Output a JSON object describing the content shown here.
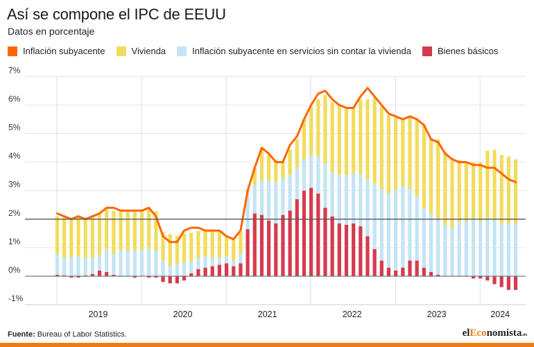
{
  "header": {
    "title": "Así se compone el IPC de EEUU",
    "subtitle": "Datos en porcentaje"
  },
  "legend": [
    {
      "label": "Inflación subyacente",
      "color": "#ff6600"
    },
    {
      "label": "Vivienda",
      "color": "#f2dc5d"
    },
    {
      "label": "Inflación subyacente en servicios sin contar la vivienda",
      "color": "#c3e4f5"
    },
    {
      "label": "Bienes básicos",
      "color": "#d63a4e"
    }
  ],
  "footer": {
    "source_label": "Fuente:",
    "source_text": " Bureau of Labor Statistics.",
    "brand_el": "el",
    "brand_eco": "Eco",
    "brand_nomista": "nomista",
    "brand_es": ".es"
  },
  "chart_data": {
    "type": "bar",
    "subtype": "stacked bar with line overlay",
    "title": "Así se compone el IPC de EEUU",
    "subtitle": "Datos en porcentaje",
    "xlabel": "",
    "ylabel": "",
    "ylim": [
      -1,
      7
    ],
    "yticks": [
      -1,
      0,
      1,
      2,
      3,
      4,
      5,
      6,
      7
    ],
    "ytick_labels": [
      "-1%",
      "0%",
      "1%",
      "2%",
      "3%",
      "4%",
      "5%",
      "6%",
      "7%"
    ],
    "reference_line": 2,
    "grid": true,
    "legend_position": "top-left",
    "x_period": "monthly, Jan 2019 – Jun 2024",
    "year_labels": [
      "2019",
      "2020",
      "2021",
      "2022",
      "2023",
      "2024"
    ],
    "year_start_index": [
      0,
      12,
      24,
      36,
      48,
      60
    ],
    "colors": {
      "core": "#ff6600",
      "shelter": "#f2dc5d",
      "services": "#c3e4f5",
      "goods": "#d63a4e"
    },
    "series": [
      {
        "name": "Inflación subyacente",
        "kind": "line",
        "values": [
          2.2,
          2.1,
          2.0,
          2.1,
          2.0,
          2.1,
          2.2,
          2.4,
          2.4,
          2.3,
          2.3,
          2.3,
          2.3,
          2.4,
          2.1,
          1.4,
          1.2,
          1.2,
          1.6,
          1.7,
          1.7,
          1.6,
          1.6,
          1.6,
          1.4,
          1.3,
          1.6,
          3.0,
          3.8,
          4.5,
          4.3,
          4.0,
          4.0,
          4.6,
          4.9,
          5.5,
          6.0,
          6.4,
          6.5,
          6.2,
          6.0,
          5.9,
          5.9,
          6.3,
          6.6,
          6.3,
          6.0,
          5.7,
          5.6,
          5.5,
          5.6,
          5.5,
          5.3,
          4.8,
          4.7,
          4.3,
          4.1,
          4.0,
          4.0,
          3.9,
          3.9,
          3.8,
          3.8,
          3.6,
          3.4,
          3.3
        ]
      },
      {
        "name": "Bienes básicos",
        "kind": "bar",
        "values": [
          0.05,
          0.03,
          -0.05,
          -0.05,
          0.03,
          0.08,
          0.2,
          0.15,
          0.05,
          0.02,
          0.02,
          -0.05,
          0.02,
          -0.05,
          -0.05,
          -0.2,
          -0.25,
          -0.25,
          -0.15,
          0.1,
          0.25,
          0.3,
          0.35,
          0.4,
          0.45,
          0.35,
          0.45,
          1.65,
          2.2,
          2.15,
          1.95,
          1.85,
          2.15,
          2.3,
          2.7,
          3.0,
          3.1,
          2.9,
          2.4,
          2.1,
          1.85,
          1.8,
          1.85,
          1.75,
          1.4,
          0.95,
          0.55,
          0.3,
          0.2,
          0.3,
          0.55,
          0.55,
          0.3,
          0.15,
          0.05,
          0.0,
          0.0,
          0.02,
          0.02,
          -0.08,
          -0.08,
          -0.15,
          -0.28,
          -0.38,
          -0.48,
          -0.48
        ]
      },
      {
        "name": "Inflación subyacente en servicios sin contar la vivienda",
        "kind": "bar",
        "values": [
          0.75,
          0.62,
          0.68,
          0.7,
          0.62,
          0.57,
          0.55,
          0.8,
          0.73,
          0.88,
          0.88,
          0.9,
          0.9,
          0.98,
          0.88,
          0.55,
          0.38,
          0.42,
          0.5,
          0.42,
          0.38,
          0.4,
          0.32,
          0.25,
          0.25,
          0.2,
          0.35,
          1.3,
          1.0,
          1.2,
          1.4,
          1.45,
          1.3,
          1.25,
          1.1,
          1.1,
          1.15,
          1.3,
          1.55,
          1.55,
          1.7,
          1.75,
          1.75,
          1.85,
          2.0,
          2.3,
          2.5,
          2.6,
          2.85,
          2.85,
          2.5,
          2.25,
          2.1,
          2.05,
          1.95,
          1.8,
          1.7,
          1.9,
          1.9,
          2.0,
          1.92,
          2.0,
          2.0,
          1.85,
          1.85,
          1.85
        ]
      },
      {
        "name": "Vivienda",
        "kind": "bar",
        "values": [
          1.3,
          1.45,
          1.37,
          1.35,
          1.4,
          1.45,
          1.45,
          1.4,
          1.5,
          1.4,
          1.4,
          1.4,
          1.4,
          1.42,
          1.4,
          1.0,
          1.1,
          1.0,
          1.0,
          1.0,
          0.95,
          0.9,
          0.95,
          0.95,
          0.7,
          0.75,
          0.75,
          0.1,
          0.6,
          1.1,
          0.9,
          0.8,
          0.55,
          0.9,
          1.0,
          1.4,
          1.7,
          2.0,
          2.4,
          2.45,
          2.45,
          2.35,
          2.3,
          2.6,
          2.8,
          3.0,
          2.9,
          2.75,
          2.5,
          2.4,
          2.55,
          2.7,
          2.9,
          2.6,
          2.8,
          2.55,
          2.45,
          2.15,
          2.1,
          2.0,
          2.06,
          2.4,
          2.43,
          2.4,
          2.35,
          2.25
        ]
      }
    ]
  }
}
